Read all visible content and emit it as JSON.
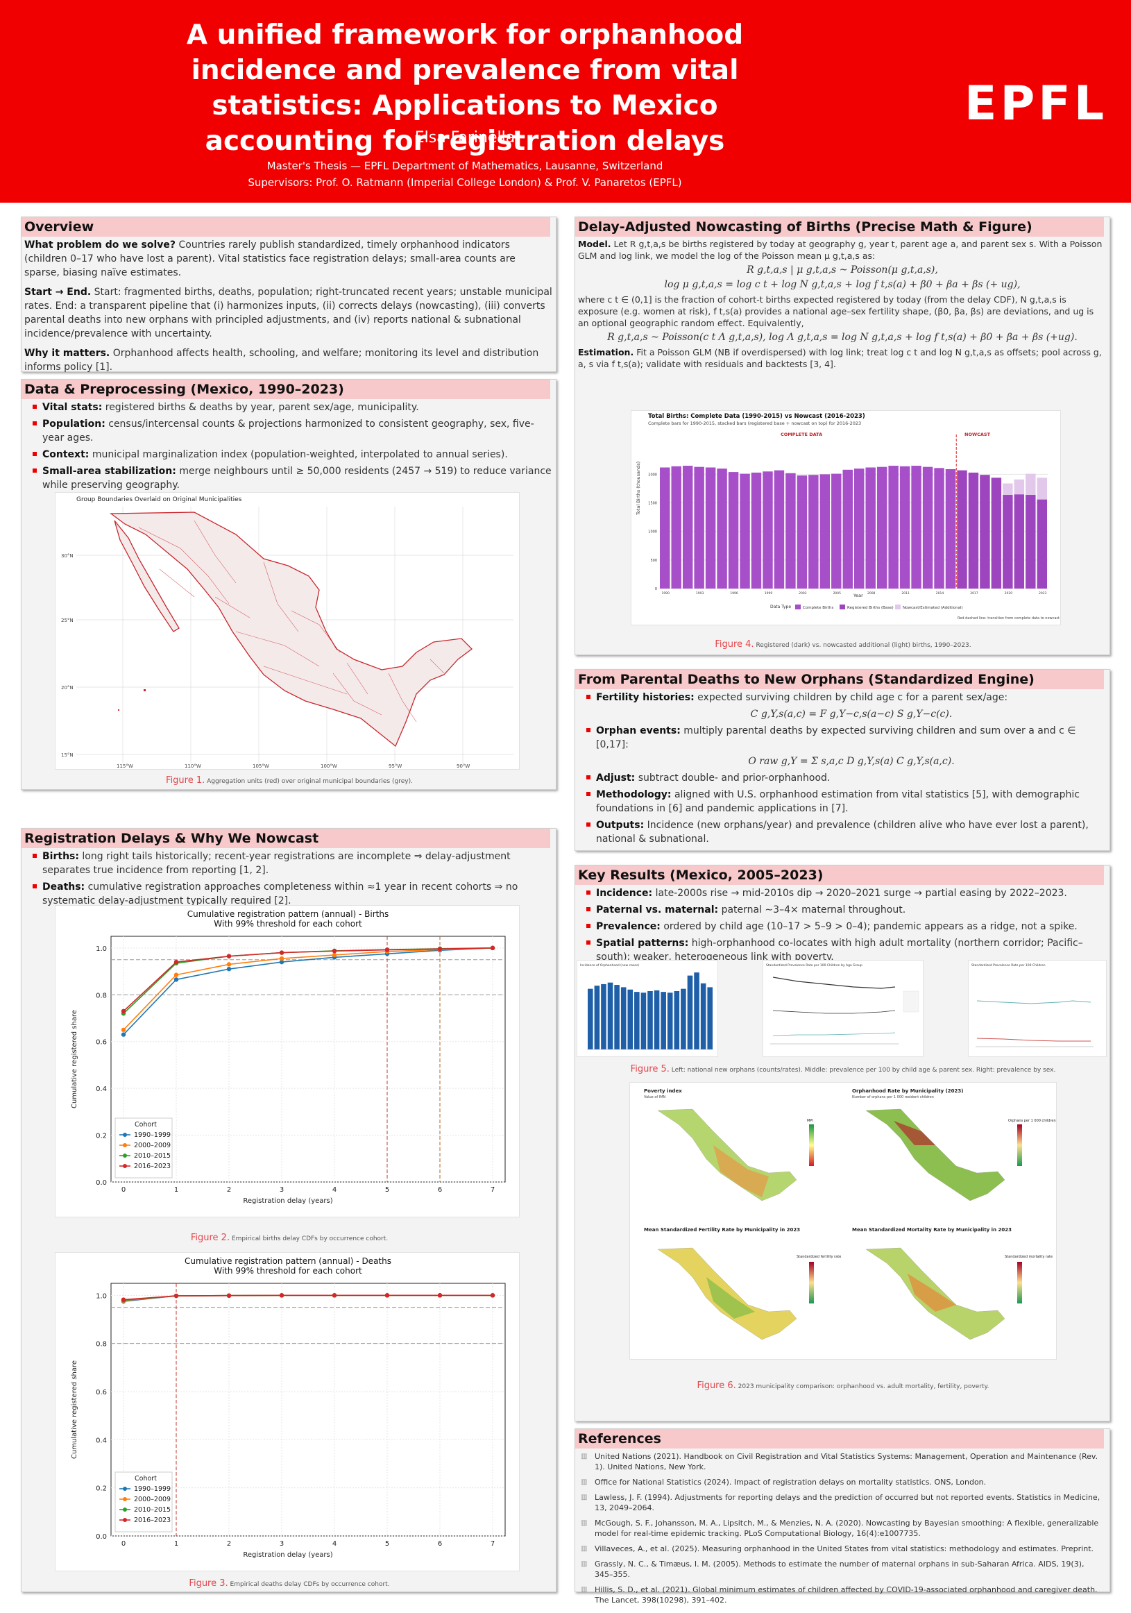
{
  "header": {
    "title": "A unified framework for orphanhood incidence and prevalence from vital statistics: Applications to Mexico accounting for registration delays",
    "author": "Elsa Farinella",
    "line1": "Master's Thesis — EPFL Department of Mathematics, Lausanne, Switzerland",
    "line2": "Supervisors: Prof. O. Ratmann (Imperial College London) & Prof. V. Panaretos (EPFL)",
    "logo": "EPFL"
  },
  "overview": {
    "title": "Overview",
    "q1": "What problem do we solve?",
    "t1": "Countries rarely publish standardized, timely orphanhood indicators (children 0–17 who have lost a parent). Vital statistics face registration delays; small-area counts are sparse, biasing naïve estimates.",
    "q2": "Start → End.",
    "t2": "Start: fragmented births, deaths, population; right-truncated recent years; unstable municipal rates. End: a transparent pipeline that (i) harmonizes inputs, (ii) corrects delays (nowcasting), (iii) converts parental deaths into new orphans with principled adjustments, and (iv) reports national & subnational incidence/prevalence with uncertainty.",
    "q3": "Why it matters.",
    "t3": "Orphanhood affects health, schooling, and welfare; monitoring its level and distribution informs policy [1]."
  },
  "data": {
    "title": "Data & Preprocessing (Mexico, 1990–2023)",
    "items": [
      {
        "k": "Vital stats:",
        "v": "registered births & deaths by year, parent sex/age, municipality."
      },
      {
        "k": "Population:",
        "v": "census/intercensal counts & projections harmonized to consistent geography, sex, five-year ages."
      },
      {
        "k": "Context:",
        "v": "municipal marginalization index (population-weighted, interpolated to annual series)."
      },
      {
        "k": "Small-area stabilization:",
        "v": "merge neighbours until ≥ 50,000 residents (2457 → 519) to reduce variance while preserving geography."
      }
    ],
    "map_title": "Group Boundaries Overlaid on Original Municipalities",
    "map_lats": [
      "30°N",
      "25°N",
      "20°N",
      "15°N"
    ],
    "map_lons": [
      "115°W",
      "110°W",
      "105°W",
      "100°W",
      "95°W",
      "90°W"
    ],
    "fig_label": "Figure 1.",
    "fig_caption": "Aggregation units (red) over original municipal boundaries (grey)."
  },
  "delays": {
    "title": "Registration Delays & Why We Nowcast",
    "items": [
      {
        "k": "Births:",
        "v": "long right tails historically; recent-year registrations are incomplete ⇒ delay-adjustment separates true incidence from reporting [1, 2]."
      },
      {
        "k": "Deaths:",
        "v": "cumulative registration approaches completeness within ≈1 year in recent cohorts ⇒ no systematic delay-adjustment typically required [2]."
      }
    ],
    "fig2_label": "Figure 2.",
    "fig2_caption": "Empirical births delay CDFs by occurrence cohort.",
    "fig3_label": "Figure 3.",
    "fig3_caption": "Empirical deaths delay CDFs by occurrence cohort."
  },
  "nowcast": {
    "title": "Delay-Adjusted Nowcasting of Births (Precise Math & Figure)",
    "model_k": "Model.",
    "model_t": "Let R g,t,a,s be births registered by today at geography g, year t, parent age a, and parent sex s. With a Poisson GLM and log link, we model the log of the Poisson mean μ g,t,a,s as:",
    "eq1": "R g,t,a,s | μ g,t,a,s ~ Poisson(μ g,t,a,s),",
    "eq2": "log μ g,t,a,s = log c t + log N g,t,a,s + log f t,s(a) + β0 + βa + βs (+ ug),",
    "where": "where c t ∈ (0,1] is the fraction of cohort-t births expected registered by today (from the delay CDF), N g,t,a,s is exposure (e.g. women at risk), f t,s(a) provides a national age–sex fertility shape, (β0, βa, βs) are deviations, and ug is an optional geographic random effect. Equivalently,",
    "eq3": "R g,t,a,s ~ Poisson(c t Λ g,t,a,s),   log Λ g,t,a,s = log N g,t,a,s + log f t,s(a) + β0 + βa + βs (+ug).",
    "est_k": "Estimation.",
    "est_t": "Fit a Poisson GLM (NB if overdispersed) with log link; treat log c t and log N g,t,a,s as offsets; pool across g, a, s via f t,s(a); validate with residuals and backtests [3, 4].",
    "chart_title": "Total Births: Complete Data (1990-2015) vs Nowcast (2016-2023)",
    "chart_subtitle": "Complete bars for 1990-2015, stacked bars (registered base + nowcast on top) for 2016-2023",
    "label_complete": "COMPLETE DATA",
    "label_nowcast": "NOWCAST",
    "ylabel": "Total Births (thousands)",
    "xlabel": "Year",
    "legend_title": "Data Type",
    "note": "Red dashed line: transition from complete data to nowcast",
    "fig_label": "Figure 4.",
    "fig_caption": "Registered (dark) vs. nowcasted additional (light) births, 1990–2023."
  },
  "orphans": {
    "title": "From Parental Deaths to New Orphans (Standardized Engine)",
    "items": [
      {
        "k": "Fertility histories:",
        "v": "expected surviving children by child age c for a parent sex/age:"
      },
      {
        "k": "Orphan events:",
        "v": "multiply parental deaths by expected surviving children and sum over a and c ∈ [0,17]:"
      },
      {
        "k": "Adjust:",
        "v": "subtract double- and prior-orphanhood."
      },
      {
        "k": "Methodology:",
        "v": "aligned with U.S. orphanhood estimation from vital statistics [5], with demographic foundations in [6] and pandemic applications in [7]."
      },
      {
        "k": "Outputs:",
        "v": "Incidence (new orphans/year) and prevalence (children alive who have ever lost a parent), national & subnational."
      }
    ],
    "eq1": "C g,Y,s(a,c) = F g,Y−c,s(a−c) S g,Y−c(c).",
    "eq2": "O raw g,Y = Σ s,a,c D g,Y,s(a) C g,Y,s(a,c)."
  },
  "results": {
    "title": "Key Results (Mexico, 2005–2023)",
    "items": [
      {
        "k": "Incidence:",
        "v": "late-2000s rise → mid-2010s dip → 2020–2021 surge → partial easing by 2022–2023."
      },
      {
        "k": "Paternal vs. maternal:",
        "v": "paternal ∼3–4× maternal throughout."
      },
      {
        "k": "Prevalence:",
        "v": "ordered by child age (10–17 > 5–9 > 0–4); pandemic appears as a ridge, not a spike."
      },
      {
        "k": "Spatial patterns:",
        "v": "high-orphanhood co-locates with high adult mortality (northern corridor; Pacific–south); weaker, heterogeneous link with poverty."
      }
    ],
    "fig5_label": "Figure 5.",
    "fig5_caption": "Left: national new orphans (counts/rates). Middle: prevalence per 100 by child age & parent sex. Right: prevalence by sex.",
    "mini1": "Incidence of Orphanhood (new cases)",
    "mini2": "Standardized Prevalence Rate per 100 Children by Age Group",
    "mini3": "Standardized Prevalence Rate per 100 Children",
    "maps": {
      "m1": "Poverty index",
      "m1s": "Value of IMN",
      "m1l": "MPI",
      "m2": "Orphanhood Rate by Municipality (2023)",
      "m2s": "Number of orphans per 1 000 resident children",
      "m2l": "Orphans per 1 000 children",
      "m3": "Mean Standardized Fertility Rate by Municipality in 2023",
      "m3l": "Standardized fertility rate",
      "m4": "Mean Standardized Mortality Rate by Municipality in 2023",
      "m4l": "Standardized mortality rate"
    },
    "fig6_label": "Figure 6.",
    "fig6_caption": "2023 municipality comparison: orphanhood vs. adult mortality, fertility, poverty."
  },
  "references": {
    "title": "References",
    "items": [
      "United Nations (2021). Handbook on Civil Registration and Vital Statistics Systems: Management, Operation and Maintenance (Rev. 1). United Nations, New York.",
      "Office for National Statistics (2024). Impact of registration delays on mortality statistics. ONS, London.",
      "Lawless, J. F. (1994). Adjustments for reporting delays and the prediction of occurred but not reported events. Statistics in Medicine, 13, 2049–2064.",
      "McGough, S. F., Johansson, M. A., Lipsitch, M., & Menzies, N. A. (2020). Nowcasting by Bayesian smoothing: A flexible, generalizable model for real-time epidemic tracking. PLoS Computational Biology, 16(4):e1007735.",
      "Villaveces, A., et al. (2025). Measuring orphanhood in the United States from vital statistics: methodology and estimates. Preprint.",
      "Grassly, N. C., & Timæus, I. M. (2005). Methods to estimate the number of maternal orphans in sub-Saharan Africa. AIDS, 19(3), 345–355.",
      "Hillis, S. D., et al. (2021). Global minimum estimates of children affected by COVID-19-associated orphanhood and caregiver death. The Lancet, 398(10298), 391–402."
    ]
  },
  "chart_data": [
    {
      "type": "line",
      "title": "Cumulative registration pattern (annual) - Births",
      "subtitle": "With 99% threshold for each cohort",
      "xlabel": "Registration delay (years)",
      "ylabel": "Cumulative registered share",
      "x": [
        0,
        1,
        2,
        3,
        4,
        5,
        6,
        7
      ],
      "ylim": [
        0,
        1.05
      ],
      "legend_title": "Cohort",
      "legend_position": "lower-left",
      "reference_lines": [
        0.8,
        0.95
      ],
      "threshold_delays": [
        5,
        6
      ],
      "series": [
        {
          "name": "1990–1999",
          "color": "#1f77b4",
          "values": [
            0.63,
            0.865,
            0.91,
            0.94,
            0.96,
            0.975,
            0.99,
            1.0
          ]
        },
        {
          "name": "2000–2009",
          "color": "#ff7f0e",
          "values": [
            0.65,
            0.885,
            0.93,
            0.955,
            0.97,
            0.985,
            0.993,
            1.0
          ]
        },
        {
          "name": "2010–2015",
          "color": "#2ca02c",
          "values": [
            0.72,
            0.935,
            0.965,
            0.98,
            0.988,
            0.993,
            0.997,
            1.0
          ]
        },
        {
          "name": "2016–2023",
          "color": "#d62728",
          "values": [
            0.73,
            0.94,
            0.965,
            0.98,
            0.987,
            0.992,
            0.996,
            1.0
          ]
        }
      ]
    },
    {
      "type": "line",
      "title": "Cumulative registration pattern (annual) - Deaths",
      "subtitle": "With 99% threshold for each cohort",
      "xlabel": "Registration delay (years)",
      "ylabel": "Cumulative registered share",
      "x": [
        0,
        1,
        2,
        3,
        4,
        5,
        6,
        7
      ],
      "ylim": [
        0,
        1.05
      ],
      "legend_title": "Cohort",
      "legend_position": "lower-left",
      "reference_lines": [
        0.8,
        0.95
      ],
      "threshold_delays": [
        1
      ],
      "series": [
        {
          "name": "1990–1999",
          "color": "#1f77b4",
          "values": [
            0.975,
            0.998,
            0.999,
            1.0,
            1.0,
            1.0,
            1.0,
            1.0
          ]
        },
        {
          "name": "2000–2009",
          "color": "#ff7f0e",
          "values": [
            0.978,
            0.998,
            0.999,
            1.0,
            1.0,
            1.0,
            1.0,
            1.0
          ]
        },
        {
          "name": "2010–2015",
          "color": "#2ca02c",
          "values": [
            0.98,
            0.998,
            0.999,
            1.0,
            1.0,
            1.0,
            1.0,
            1.0
          ]
        },
        {
          "name": "2016–2023",
          "color": "#d62728",
          "values": [
            0.982,
            0.998,
            0.999,
            1.0,
            1.0,
            1.0,
            1.0,
            1.0
          ]
        }
      ]
    },
    {
      "type": "bar",
      "title": "Total Births: Complete Data (1990-2015) vs Nowcast (2016-2023)",
      "xlabel": "Year",
      "ylabel": "Total Births (thousands)",
      "ylim": [
        0,
        2600
      ],
      "categories": [
        "1990",
        "1991",
        "1992",
        "1993",
        "1994",
        "1995",
        "1996",
        "1997",
        "1998",
        "1999",
        "2000",
        "2001",
        "2002",
        "2003",
        "2004",
        "2005",
        "2006",
        "2007",
        "2008",
        "2009",
        "2010",
        "2011",
        "2012",
        "2013",
        "2014",
        "2015",
        "2016",
        "2017",
        "2018",
        "2019",
        "2020",
        "2021",
        "2022",
        "2023"
      ],
      "x_tick_labels": [
        "1990",
        "1993",
        "1996",
        "1999",
        "2002",
        "2005",
        "2008",
        "2011",
        "2014",
        "2017",
        "2020",
        "2023"
      ],
      "y_ticks": [
        0,
        500,
        1000,
        1500,
        2000
      ],
      "series": [
        {
          "name": "Complete Births",
          "color": "#a64fc9",
          "values": [
            2120,
            2140,
            2150,
            2130,
            2120,
            2100,
            2040,
            2010,
            2030,
            2050,
            2070,
            2020,
            1980,
            1990,
            2000,
            2010,
            2080,
            2100,
            2120,
            2130,
            2150,
            2140,
            2150,
            2130,
            2110,
            2090,
            null,
            null,
            null,
            null,
            null,
            null,
            null,
            null
          ]
        },
        {
          "name": "Registered Births (Base)",
          "color": "#9d45be",
          "values": [
            null,
            null,
            null,
            null,
            null,
            null,
            null,
            null,
            null,
            null,
            null,
            null,
            null,
            null,
            null,
            null,
            null,
            null,
            null,
            null,
            null,
            null,
            null,
            null,
            null,
            null,
            2070,
            2030,
            1990,
            1940,
            1640,
            1650,
            1640,
            1560
          ]
        },
        {
          "name": "Nowcast/Estimated (Additional)",
          "color": "#e2c9ec",
          "values": [
            null,
            null,
            null,
            null,
            null,
            null,
            null,
            null,
            null,
            null,
            null,
            null,
            null,
            null,
            null,
            null,
            null,
            null,
            null,
            null,
            null,
            null,
            null,
            null,
            null,
            null,
            0,
            0,
            0,
            0,
            200,
            260,
            370,
            380
          ]
        }
      ]
    },
    {
      "type": "bar",
      "title": "Incidence of Orphanhood (new cases)",
      "values": [
        0.78,
        0.82,
        0.84,
        0.86,
        0.83,
        0.8,
        0.77,
        0.74,
        0.73,
        0.75,
        0.76,
        0.74,
        0.73,
        0.75,
        0.78,
        0.95,
        0.99,
        0.85,
        0.8
      ]
    }
  ]
}
